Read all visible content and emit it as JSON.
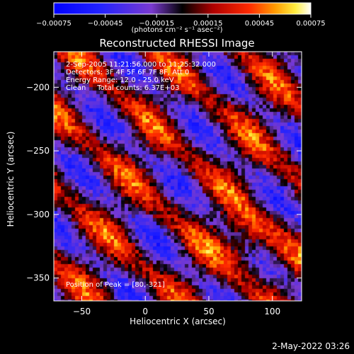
{
  "chart_data": {
    "type": "heatmap",
    "title": "Reconstructed RHESSI Image",
    "xlabel": "Heliocentric X (arcsec)",
    "ylabel": "Heliocentric Y (arcsec)",
    "xlim": [
      -72,
      123
    ],
    "ylim": [
      -368,
      -172
    ],
    "x_ticks": [
      -50,
      0,
      50,
      100
    ],
    "y_ticks": [
      -200,
      -250,
      -300,
      -350
    ],
    "colorbar": {
      "range": [
        -0.00075,
        0.00075
      ],
      "ticks": [
        "-0.00075",
        "-0.00045",
        "-0.00015",
        "0.00015",
        "0.00045",
        "0.00075"
      ],
      "unit_label": "(photons cm⁻² s⁻¹ asec⁻²)"
    },
    "annotations": [
      "2-Sep-2005 11:21:56.000 to 11:25:32.000",
      "Detectors: 3F 4F 5F 6F 7F 8F, Att 0",
      "Energy Range: 12.0 - 25.0 keV",
      "Clean     Total counts: 6.37E+03"
    ],
    "peak": {
      "label": "Position of Peak = [80,-321]",
      "x": 80,
      "y": -321
    },
    "footer_date": "2-May-2022 03:26"
  }
}
